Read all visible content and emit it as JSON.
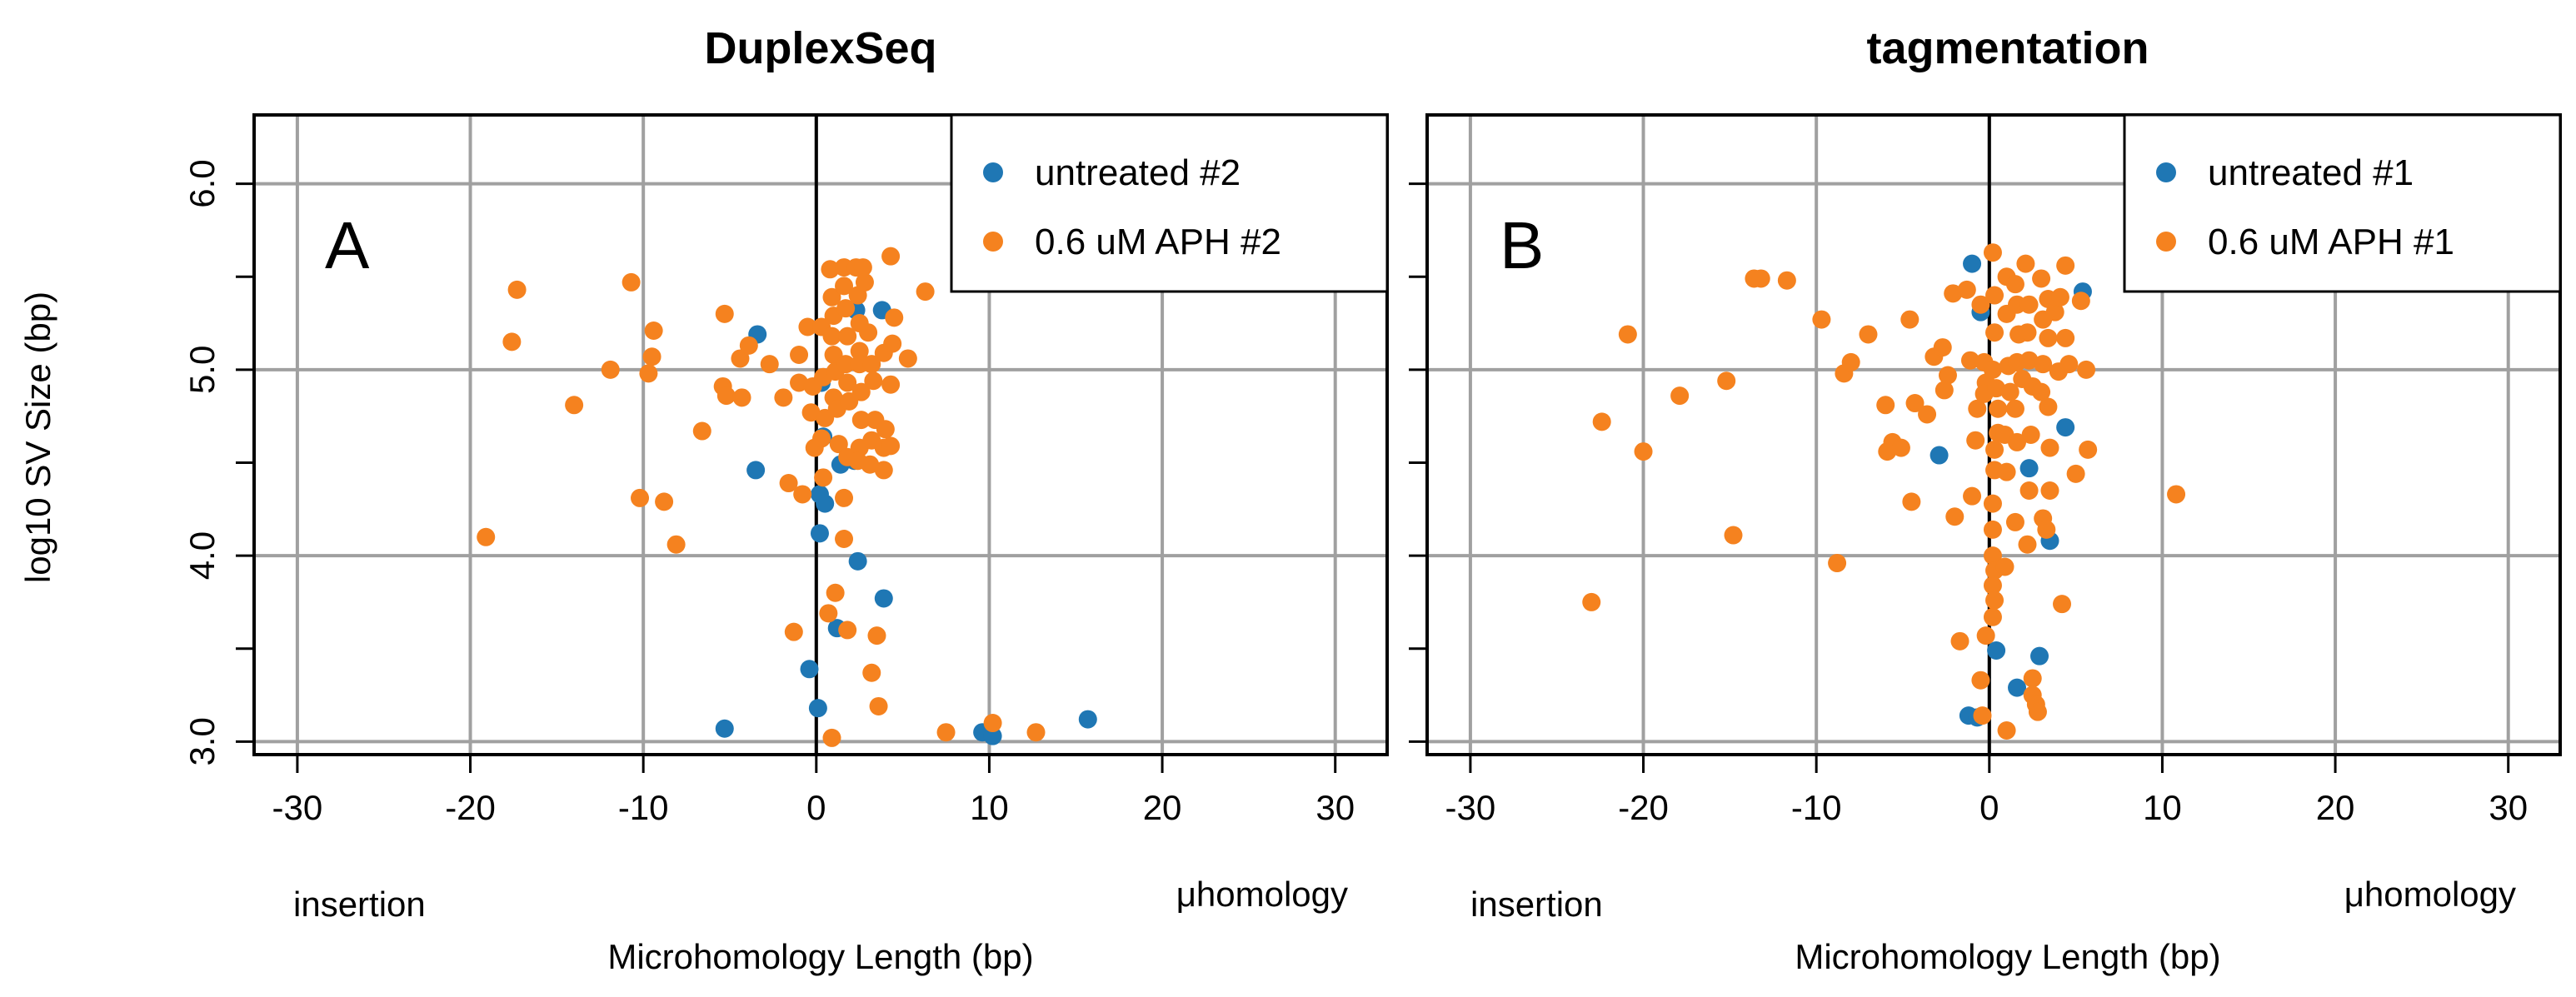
{
  "shared": {
    "ylabel": "log10 SV Size (bp)",
    "xlabel": "Microhomology Length (bp)",
    "left_note": "insertion",
    "right_note": "μhomology"
  },
  "colors": {
    "untreated": "#1f77b4",
    "aph": "#f5821f",
    "grid": "#a0a0a0"
  },
  "chart_data": [
    {
      "type": "scatter",
      "title": "DuplexSeq",
      "panel_letter": "A",
      "xlim": [
        -32.5,
        33
      ],
      "ylim": [
        2.93,
        6.37
      ],
      "xticks": [
        -30,
        -20,
        -10,
        0,
        10,
        20,
        30
      ],
      "yticks": [
        "3.0",
        "4.0",
        "5.0",
        "6.0"
      ],
      "legend": "top-right",
      "series": [
        {
          "name": "untreated #2",
          "color": "#1f77b4",
          "points": [
            [
              -3.4,
              5.19
            ],
            [
              -3.5,
              4.46
            ],
            [
              2.3,
              5.32
            ],
            [
              3.8,
              5.32
            ],
            [
              0.3,
              4.93
            ],
            [
              0.4,
              4.64
            ],
            [
              1.4,
              4.49
            ],
            [
              2.2,
              4.51
            ],
            [
              0.2,
              4.33
            ],
            [
              0.5,
              4.28
            ],
            [
              0.2,
              4.12
            ],
            [
              2.4,
              3.97
            ],
            [
              3.9,
              3.77
            ],
            [
              1.2,
              3.61
            ],
            [
              -0.4,
              3.39
            ],
            [
              0.1,
              3.18
            ],
            [
              -5.3,
              3.07
            ],
            [
              9.6,
              3.05
            ],
            [
              10.2,
              3.03
            ],
            [
              15.7,
              3.12
            ]
          ]
        },
        {
          "name": "0.6 uM APH #2",
          "color": "#f5821f",
          "points": [
            [
              -19.1,
              4.1
            ],
            [
              -17.3,
              5.43
            ],
            [
              -17.6,
              5.15
            ],
            [
              -14.0,
              4.81
            ],
            [
              -11.9,
              5.0
            ],
            [
              -10.7,
              5.47
            ],
            [
              -10.2,
              4.31
            ],
            [
              -9.4,
              5.21
            ],
            [
              -9.5,
              5.07
            ],
            [
              -9.7,
              4.98
            ],
            [
              -8.8,
              4.29
            ],
            [
              -8.1,
              4.06
            ],
            [
              -6.6,
              4.67
            ],
            [
              -5.3,
              5.3
            ],
            [
              -5.4,
              4.91
            ],
            [
              -5.2,
              4.86
            ],
            [
              -4.4,
              5.06
            ],
            [
              -4.3,
              4.85
            ],
            [
              -3.9,
              5.13
            ],
            [
              -2.7,
              5.03
            ],
            [
              -1.9,
              4.85
            ],
            [
              -1.6,
              4.39
            ],
            [
              -1.0,
              5.08
            ],
            [
              -1.0,
              4.93
            ],
            [
              -0.8,
              4.33
            ],
            [
              -0.5,
              5.23
            ],
            [
              -0.2,
              4.91
            ],
            [
              -0.3,
              4.77
            ],
            [
              -0.1,
              4.58
            ],
            [
              -1.3,
              3.59
            ],
            [
              0.3,
              5.23
            ],
            [
              0.4,
              4.96
            ],
            [
              0.5,
              4.74
            ],
            [
              0.3,
              4.63
            ],
            [
              0.4,
              4.42
            ],
            [
              0.8,
              5.54
            ],
            [
              0.9,
              5.39
            ],
            [
              1.0,
              5.29
            ],
            [
              0.9,
              5.18
            ],
            [
              1.0,
              5.08
            ],
            [
              1.1,
              4.99
            ],
            [
              1.0,
              4.85
            ],
            [
              1.2,
              4.79
            ],
            [
              1.3,
              4.6
            ],
            [
              1.1,
              3.8
            ],
            [
              0.7,
              3.69
            ],
            [
              0.9,
              3.02
            ],
            [
              1.6,
              5.55
            ],
            [
              1.6,
              5.45
            ],
            [
              1.7,
              5.33
            ],
            [
              1.8,
              5.18
            ],
            [
              1.7,
              5.03
            ],
            [
              1.8,
              4.93
            ],
            [
              1.9,
              4.83
            ],
            [
              1.8,
              4.53
            ],
            [
              1.6,
              4.31
            ],
            [
              1.6,
              4.09
            ],
            [
              1.8,
              3.6
            ],
            [
              2.3,
              5.55
            ],
            [
              2.4,
              5.4
            ],
            [
              2.5,
              5.25
            ],
            [
              2.5,
              5.1
            ],
            [
              2.5,
              5.03
            ],
            [
              2.6,
              4.88
            ],
            [
              2.6,
              4.73
            ],
            [
              2.5,
              4.58
            ],
            [
              2.4,
              4.51
            ],
            [
              2.7,
              5.55
            ],
            [
              2.8,
              5.47
            ],
            [
              3.0,
              5.2
            ],
            [
              3.2,
              5.03
            ],
            [
              3.3,
              4.94
            ],
            [
              3.4,
              4.73
            ],
            [
              3.2,
              4.62
            ],
            [
              3.1,
              4.49
            ],
            [
              3.5,
              3.57
            ],
            [
              3.2,
              3.37
            ],
            [
              3.6,
              3.19
            ],
            [
              3.9,
              5.09
            ],
            [
              4.0,
              4.68
            ],
            [
              3.9,
              4.58
            ],
            [
              3.9,
              4.46
            ],
            [
              4.3,
              5.61
            ],
            [
              4.5,
              5.28
            ],
            [
              4.4,
              5.14
            ],
            [
              4.3,
              4.92
            ],
            [
              4.3,
              4.59
            ],
            [
              5.3,
              5.06
            ],
            [
              6.3,
              5.42
            ],
            [
              7.5,
              3.05
            ],
            [
              10.2,
              3.1
            ],
            [
              12.7,
              3.05
            ]
          ]
        }
      ]
    },
    {
      "type": "scatter",
      "title": "tagmentation",
      "panel_letter": "B",
      "xlim": [
        -32.5,
        33
      ],
      "ylim": [
        2.93,
        6.37
      ],
      "xticks": [
        -30,
        -20,
        -10,
        0,
        10,
        20,
        30
      ],
      "yticks": [
        "3.0",
        "4.0",
        "5.0",
        "6.0"
      ],
      "legend": "top-right",
      "series": [
        {
          "name": "untreated #1",
          "color": "#1f77b4",
          "points": [
            [
              -1.0,
              5.57
            ],
            [
              -0.5,
              5.31
            ],
            [
              5.4,
              5.42
            ],
            [
              4.4,
              4.69
            ],
            [
              -2.9,
              4.54
            ],
            [
              2.3,
              4.47
            ],
            [
              3.5,
              4.08
            ],
            [
              0.4,
              3.49
            ],
            [
              2.9,
              3.46
            ],
            [
              1.6,
              3.29
            ],
            [
              -1.2,
              3.14
            ],
            [
              -0.7,
              3.13
            ]
          ]
        },
        {
          "name": "0.6 uM APH #1",
          "color": "#f5821f",
          "points": [
            [
              -23.0,
              3.75
            ],
            [
              -22.4,
              4.72
            ],
            [
              -20.9,
              5.19
            ],
            [
              -20.0,
              4.56
            ],
            [
              -17.9,
              4.86
            ],
            [
              -15.2,
              4.94
            ],
            [
              -14.8,
              4.11
            ],
            [
              -13.6,
              5.49
            ],
            [
              -13.2,
              5.49
            ],
            [
              -11.7,
              5.48
            ],
            [
              -9.7,
              5.27
            ],
            [
              -8.8,
              3.96
            ],
            [
              -8.4,
              4.98
            ],
            [
              -8.0,
              5.04
            ],
            [
              -7.0,
              5.19
            ],
            [
              -6.0,
              4.81
            ],
            [
              -5.9,
              4.56
            ],
            [
              -5.6,
              4.61
            ],
            [
              -5.1,
              4.58
            ],
            [
              -4.6,
              5.27
            ],
            [
              -4.3,
              4.82
            ],
            [
              -4.5,
              4.29
            ],
            [
              -3.6,
              4.76
            ],
            [
              -3.2,
              5.07
            ],
            [
              -2.7,
              5.12
            ],
            [
              -2.4,
              4.97
            ],
            [
              -2.6,
              4.89
            ],
            [
              -2.1,
              5.41
            ],
            [
              -2.0,
              4.21
            ],
            [
              -1.7,
              3.54
            ],
            [
              -1.3,
              5.43
            ],
            [
              -1.1,
              5.05
            ],
            [
              -1.0,
              4.32
            ],
            [
              -0.8,
              4.62
            ],
            [
              -0.7,
              4.79
            ],
            [
              -0.5,
              5.35
            ],
            [
              -0.3,
              5.04
            ],
            [
              -0.2,
              4.93
            ],
            [
              -0.3,
              4.87
            ],
            [
              -0.2,
              3.57
            ],
            [
              -0.4,
              3.14
            ],
            [
              -0.5,
              3.33
            ],
            [
              0.2,
              5.63
            ],
            [
              0.3,
              5.4
            ],
            [
              0.3,
              5.2
            ],
            [
              0.2,
              5.0
            ],
            [
              0.4,
              4.9
            ],
            [
              0.5,
              4.79
            ],
            [
              0.5,
              4.66
            ],
            [
              0.3,
              4.57
            ],
            [
              0.3,
              4.46
            ],
            [
              0.2,
              4.28
            ],
            [
              0.2,
              4.14
            ],
            [
              0.2,
              4.0
            ],
            [
              0.3,
              3.92
            ],
            [
              0.2,
              3.84
            ],
            [
              0.3,
              3.76
            ],
            [
              0.2,
              3.67
            ],
            [
              1.0,
              5.5
            ],
            [
              1.0,
              5.3
            ],
            [
              1.1,
              5.02
            ],
            [
              1.2,
              4.88
            ],
            [
              0.9,
              4.65
            ],
            [
              1.0,
              4.45
            ],
            [
              0.9,
              3.94
            ],
            [
              1.0,
              3.06
            ],
            [
              1.5,
              5.46
            ],
            [
              1.6,
              5.35
            ],
            [
              1.7,
              5.19
            ],
            [
              1.6,
              5.04
            ],
            [
              1.9,
              4.95
            ],
            [
              1.5,
              4.79
            ],
            [
              1.6,
              4.61
            ],
            [
              1.5,
              4.18
            ],
            [
              2.1,
              5.57
            ],
            [
              2.3,
              5.35
            ],
            [
              2.2,
              5.2
            ],
            [
              2.3,
              5.05
            ],
            [
              2.5,
              4.91
            ],
            [
              2.4,
              4.65
            ],
            [
              2.3,
              4.35
            ],
            [
              2.2,
              4.06
            ],
            [
              2.5,
              3.34
            ],
            [
              2.5,
              3.25
            ],
            [
              2.7,
              3.2
            ],
            [
              2.8,
              3.16
            ],
            [
              3.0,
              5.49
            ],
            [
              3.1,
              5.27
            ],
            [
              3.1,
              5.03
            ],
            [
              3.0,
              4.88
            ],
            [
              3.1,
              4.2
            ],
            [
              3.3,
              4.14
            ],
            [
              3.4,
              5.38
            ],
            [
              3.4,
              5.17
            ],
            [
              3.4,
              4.8
            ],
            [
              3.5,
              4.58
            ],
            [
              3.5,
              4.35
            ],
            [
              3.8,
              5.31
            ],
            [
              4.1,
              5.39
            ],
            [
              4.0,
              4.99
            ],
            [
              4.2,
              3.74
            ],
            [
              4.4,
              5.56
            ],
            [
              4.4,
              5.17
            ],
            [
              4.6,
              5.03
            ],
            [
              5.0,
              4.44
            ],
            [
              5.3,
              5.37
            ],
            [
              5.6,
              5.0
            ],
            [
              5.7,
              4.57
            ],
            [
              10.8,
              4.33
            ]
          ]
        }
      ]
    }
  ]
}
